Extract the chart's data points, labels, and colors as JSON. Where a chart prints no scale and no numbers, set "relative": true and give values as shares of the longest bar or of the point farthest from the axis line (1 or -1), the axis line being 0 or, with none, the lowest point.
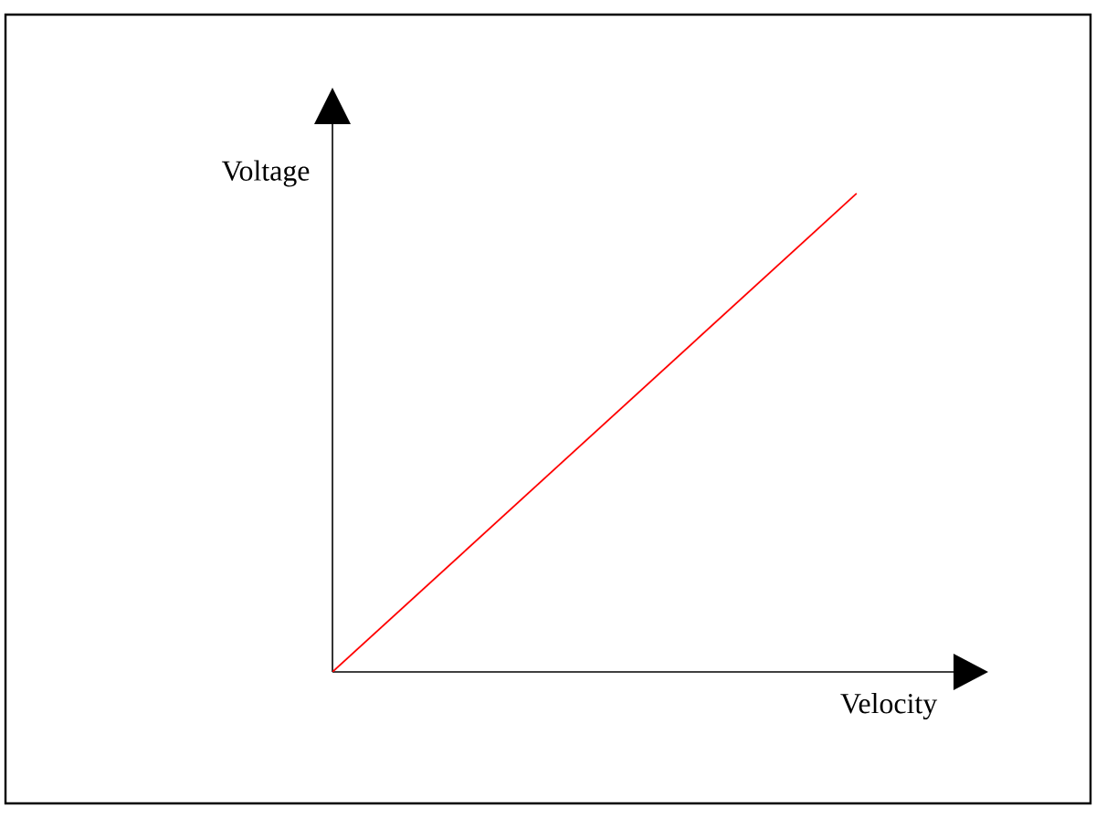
{
  "chart_data": {
    "type": "line",
    "xlabel": "Velocity",
    "ylabel": "Voltage",
    "categories": [
      null,
      null
    ],
    "relative": true,
    "series": [
      {
        "color": "#ff0000",
        "values": [
          0,
          1
        ]
      }
    ]
  }
}
